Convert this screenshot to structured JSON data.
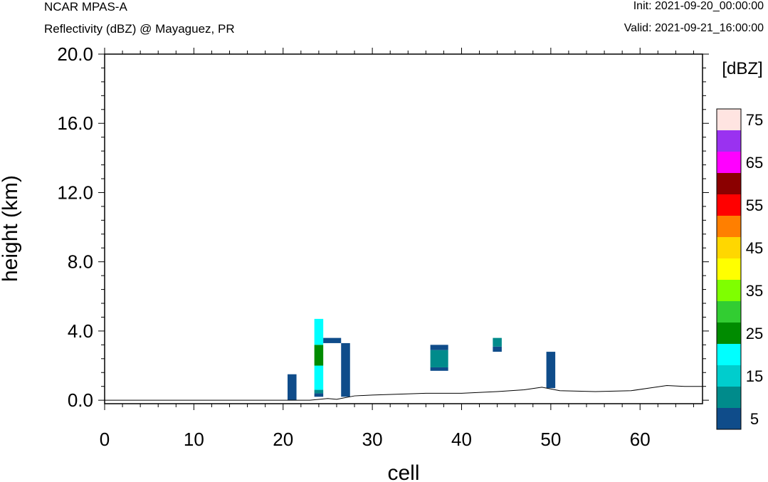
{
  "header": {
    "model": "NCAR MPAS-A",
    "field": "Reflectivity (dBZ) @ Mayaguez, PR",
    "init": "Init: 2021-09-20_00:00:00",
    "valid": "Valid: 2021-09-21_16:00:00"
  },
  "chart_data": {
    "type": "heatmap",
    "xlabel": "cell",
    "ylabel": "height (km)",
    "xlim": [
      0,
      67
    ],
    "ylim": [
      -0.2,
      20.0
    ],
    "x_ticks": [
      0,
      10,
      20,
      30,
      40,
      50,
      60
    ],
    "x_tick_labels": [
      "0",
      "10",
      "20",
      "30",
      "40",
      "50",
      "60"
    ],
    "y_ticks": [
      0,
      4,
      8,
      12,
      16,
      20
    ],
    "y_tick_labels": [
      "0.0",
      "4.0",
      "8.0",
      "12.0",
      "16.0",
      "20.0"
    ],
    "colorbar": {
      "unit_label": "[dBZ]",
      "levels": [
        5,
        10,
        15,
        20,
        25,
        30,
        35,
        40,
        45,
        50,
        55,
        60,
        65,
        70,
        75
      ],
      "labels": [
        "5",
        "15",
        "25",
        "35",
        "45",
        "55",
        "65",
        "75"
      ],
      "colors": [
        "#0f4c8a",
        "#008b8b",
        "#00cdcd",
        "#00ffff",
        "#008b00",
        "#32cd32",
        "#7fff00",
        "#ffff00",
        "#ffd700",
        "#ff7f00",
        "#ff0000",
        "#8b0000",
        "#ff00ff",
        "#9a32f0",
        "#ffe4e1"
      ]
    },
    "cells": [
      {
        "x0": 20.5,
        "x1": 21.5,
        "y0": 0.0,
        "y1": 1.5,
        "dbz": 5
      },
      {
        "x0": 23.5,
        "x1": 24.5,
        "y0": 0.2,
        "y1": 0.4,
        "dbz": 5
      },
      {
        "x0": 23.5,
        "x1": 24.5,
        "y0": 0.4,
        "y1": 0.6,
        "dbz": 10
      },
      {
        "x0": 23.5,
        "x1": 24.5,
        "y0": 0.6,
        "y1": 2.0,
        "dbz": 20
      },
      {
        "x0": 23.5,
        "x1": 24.5,
        "y0": 2.0,
        "y1": 3.2,
        "dbz": 25
      },
      {
        "x0": 23.5,
        "x1": 24.5,
        "y0": 3.2,
        "y1": 4.7,
        "dbz": 20
      },
      {
        "x0": 24.5,
        "x1": 26.5,
        "y0": 3.3,
        "y1": 3.6,
        "dbz": 5
      },
      {
        "x0": 26.5,
        "x1": 27.5,
        "y0": 0.2,
        "y1": 3.3,
        "dbz": 5
      },
      {
        "x0": 36.5,
        "x1": 38.5,
        "y0": 1.7,
        "y1": 1.9,
        "dbz": 5
      },
      {
        "x0": 36.5,
        "x1": 38.5,
        "y0": 1.9,
        "y1": 2.9,
        "dbz": 10
      },
      {
        "x0": 36.5,
        "x1": 38.5,
        "y0": 2.9,
        "y1": 3.2,
        "dbz": 5
      },
      {
        "x0": 43.5,
        "x1": 44.5,
        "y0": 2.8,
        "y1": 3.1,
        "dbz": 5
      },
      {
        "x0": 43.5,
        "x1": 44.5,
        "y0": 3.1,
        "y1": 3.6,
        "dbz": 10
      },
      {
        "x0": 49.5,
        "x1": 50.5,
        "y0": 0.7,
        "y1": 2.8,
        "dbz": 5
      }
    ],
    "terrain": [
      {
        "x": 0,
        "y": 0.0
      },
      {
        "x": 20,
        "y": 0.0
      },
      {
        "x": 23,
        "y": 0.0
      },
      {
        "x": 25,
        "y": 0.1
      },
      {
        "x": 26,
        "y": 0.05
      },
      {
        "x": 28,
        "y": 0.25
      },
      {
        "x": 30,
        "y": 0.3
      },
      {
        "x": 33,
        "y": 0.35
      },
      {
        "x": 36,
        "y": 0.4
      },
      {
        "x": 40,
        "y": 0.4
      },
      {
        "x": 44,
        "y": 0.5
      },
      {
        "x": 47,
        "y": 0.6
      },
      {
        "x": 49,
        "y": 0.75
      },
      {
        "x": 51,
        "y": 0.55
      },
      {
        "x": 55,
        "y": 0.5
      },
      {
        "x": 59,
        "y": 0.55
      },
      {
        "x": 61,
        "y": 0.7
      },
      {
        "x": 63,
        "y": 0.85
      },
      {
        "x": 65,
        "y": 0.8
      },
      {
        "x": 67,
        "y": 0.8
      }
    ]
  }
}
